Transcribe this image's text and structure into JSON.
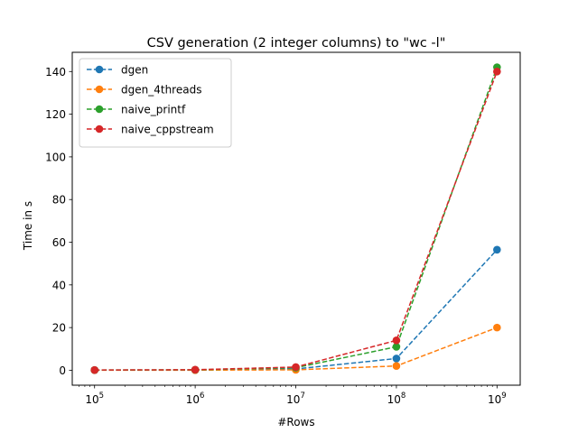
{
  "chart_data": {
    "type": "line",
    "title": "CSV generation (2 integer columns) to \"wc -l\"",
    "xlabel": "#Rows",
    "ylabel": "Time in s",
    "xscale": "log",
    "x": [
      100000,
      1000000,
      10000000,
      100000000,
      1000000000
    ],
    "xticks": [
      {
        "base": "10",
        "exp": "5"
      },
      {
        "base": "10",
        "exp": "6"
      },
      {
        "base": "10",
        "exp": "7"
      },
      {
        "base": "10",
        "exp": "8"
      },
      {
        "base": "10",
        "exp": "9"
      }
    ],
    "yticks": [
      0,
      20,
      40,
      60,
      80,
      100,
      120,
      140
    ],
    "xlim": [
      60000,
      1700000000
    ],
    "ylim": [
      -7,
      149
    ],
    "grid": false,
    "legend_position": "top-left",
    "line_style": "dashed",
    "marker": "circle",
    "series": [
      {
        "name": "dgen",
        "color": "#1f77b4",
        "values": [
          0.05,
          0.1,
          0.6,
          5.5,
          56.5
        ]
      },
      {
        "name": "dgen_4threads",
        "color": "#ff7f0e",
        "values": [
          0.03,
          0.05,
          0.2,
          2.0,
          20.0
        ]
      },
      {
        "name": "naive_printf",
        "color": "#2ca02c",
        "values": [
          0.1,
          0.2,
          1.2,
          11.0,
          142.0
        ]
      },
      {
        "name": "naive_cppstream",
        "color": "#d62728",
        "values": [
          0.12,
          0.25,
          1.5,
          14.0,
          140.0
        ]
      }
    ]
  }
}
